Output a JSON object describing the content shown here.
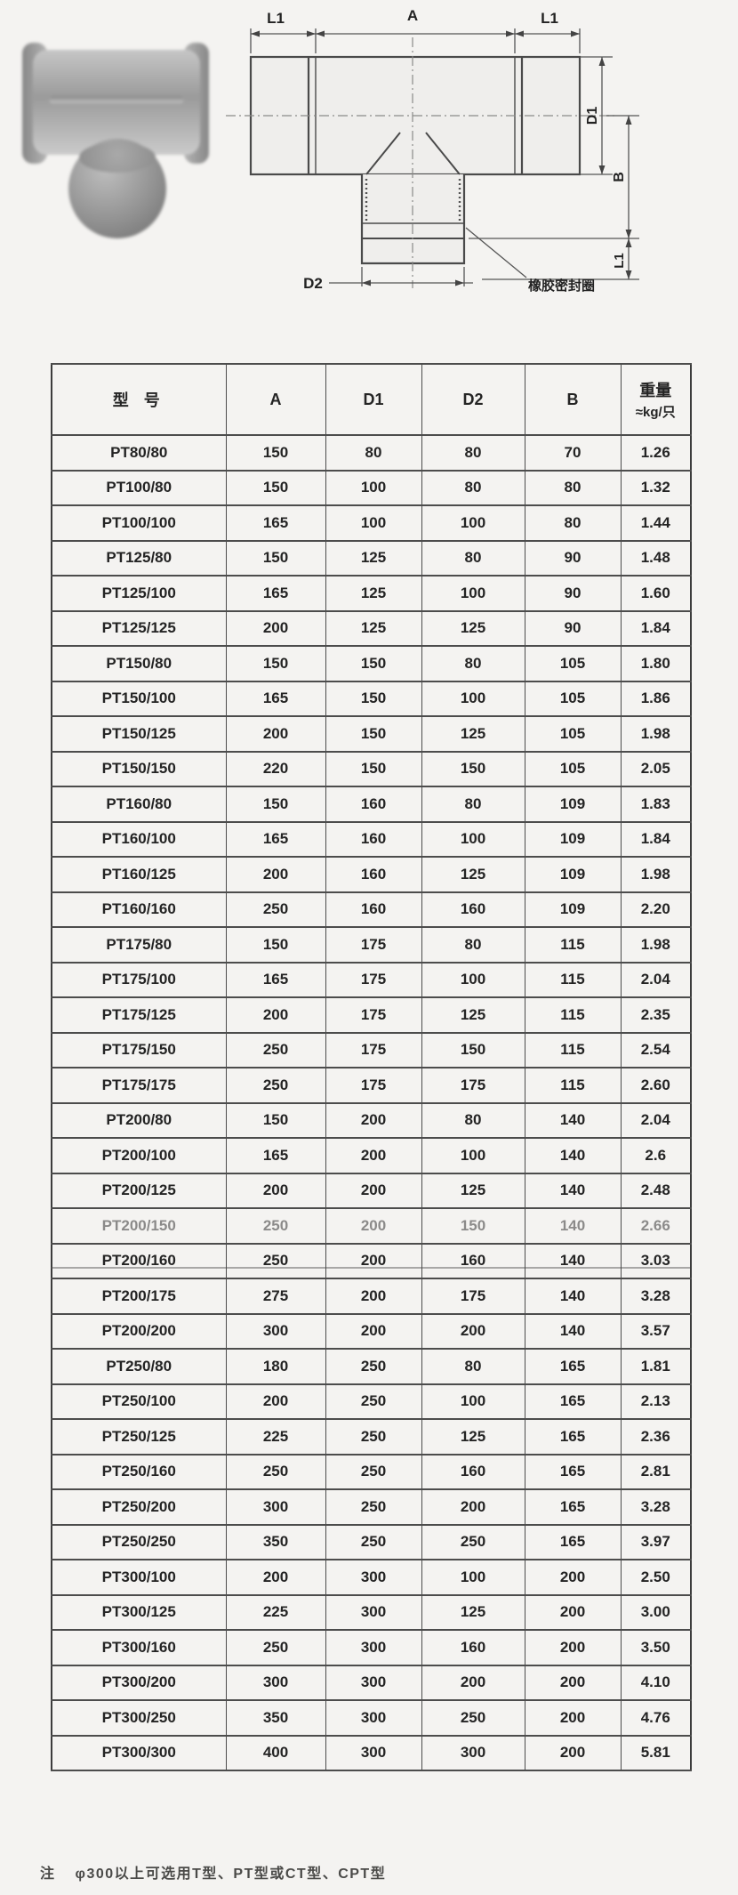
{
  "drawing": {
    "labels": {
      "l1_left": "L1",
      "a": "A",
      "l1_right": "L1",
      "d1": "D1",
      "b": "B",
      "l1_bottom": "L1",
      "d2": "D2"
    },
    "annotation": "橡胶密封圈"
  },
  "table": {
    "headers": {
      "model": "型 号",
      "a": "A",
      "d1": "D1",
      "d2": "D2",
      "b": "B",
      "weight_line1": "重量",
      "weight_line2": "≈kg/只"
    },
    "rows": [
      {
        "model": "PT80/80",
        "a": "150",
        "d1": "80",
        "d2": "80",
        "b": "70",
        "w": "1.26"
      },
      {
        "model": "PT100/80",
        "a": "150",
        "d1": "100",
        "d2": "80",
        "b": "80",
        "w": "1.32"
      },
      {
        "model": "PT100/100",
        "a": "165",
        "d1": "100",
        "d2": "100",
        "b": "80",
        "w": "1.44"
      },
      {
        "model": "PT125/80",
        "a": "150",
        "d1": "125",
        "d2": "80",
        "b": "90",
        "w": "1.48"
      },
      {
        "model": "PT125/100",
        "a": "165",
        "d1": "125",
        "d2": "100",
        "b": "90",
        "w": "1.60"
      },
      {
        "model": "PT125/125",
        "a": "200",
        "d1": "125",
        "d2": "125",
        "b": "90",
        "w": "1.84"
      },
      {
        "model": "PT150/80",
        "a": "150",
        "d1": "150",
        "d2": "80",
        "b": "105",
        "w": "1.80"
      },
      {
        "model": "PT150/100",
        "a": "165",
        "d1": "150",
        "d2": "100",
        "b": "105",
        "w": "1.86"
      },
      {
        "model": "PT150/125",
        "a": "200",
        "d1": "150",
        "d2": "125",
        "b": "105",
        "w": "1.98"
      },
      {
        "model": "PT150/150",
        "a": "220",
        "d1": "150",
        "d2": "150",
        "b": "105",
        "w": "2.05"
      },
      {
        "model": "PT160/80",
        "a": "150",
        "d1": "160",
        "d2": "80",
        "b": "109",
        "w": "1.83"
      },
      {
        "model": "PT160/100",
        "a": "165",
        "d1": "160",
        "d2": "100",
        "b": "109",
        "w": "1.84"
      },
      {
        "model": "PT160/125",
        "a": "200",
        "d1": "160",
        "d2": "125",
        "b": "109",
        "w": "1.98"
      },
      {
        "model": "PT160/160",
        "a": "250",
        "d1": "160",
        "d2": "160",
        "b": "109",
        "w": "2.20"
      },
      {
        "model": "PT175/80",
        "a": "150",
        "d1": "175",
        "d2": "80",
        "b": "115",
        "w": "1.98"
      },
      {
        "model": "PT175/100",
        "a": "165",
        "d1": "175",
        "d2": "100",
        "b": "115",
        "w": "2.04"
      },
      {
        "model": "PT175/125",
        "a": "200",
        "d1": "175",
        "d2": "125",
        "b": "115",
        "w": "2.35"
      },
      {
        "model": "PT175/150",
        "a": "250",
        "d1": "175",
        "d2": "150",
        "b": "115",
        "w": "2.54"
      },
      {
        "model": "PT175/175",
        "a": "250",
        "d1": "175",
        "d2": "175",
        "b": "115",
        "w": "2.60"
      },
      {
        "model": "PT200/80",
        "a": "150",
        "d1": "200",
        "d2": "80",
        "b": "140",
        "w": "2.04"
      },
      {
        "model": "PT200/100",
        "a": "165",
        "d1": "200",
        "d2": "100",
        "b": "140",
        "w": "2.6"
      },
      {
        "model": "PT200/125",
        "a": "200",
        "d1": "200",
        "d2": "125",
        "b": "140",
        "w": "2.48"
      },
      {
        "model": "PT200/150",
        "a": "250",
        "d1": "200",
        "d2": "150",
        "b": "140",
        "w": "2.66",
        "faded": true
      },
      {
        "model": "PT200/160",
        "a": "250",
        "d1": "200",
        "d2": "160",
        "b": "140",
        "w": "3.03"
      },
      {
        "model": "PT200/175",
        "a": "275",
        "d1": "200",
        "d2": "175",
        "b": "140",
        "w": "3.28"
      },
      {
        "model": "PT200/200",
        "a": "300",
        "d1": "200",
        "d2": "200",
        "b": "140",
        "w": "3.57"
      },
      {
        "model": "PT250/80",
        "a": "180",
        "d1": "250",
        "d2": "80",
        "b": "165",
        "w": "1.81"
      },
      {
        "model": "PT250/100",
        "a": "200",
        "d1": "250",
        "d2": "100",
        "b": "165",
        "w": "2.13"
      },
      {
        "model": "PT250/125",
        "a": "225",
        "d1": "250",
        "d2": "125",
        "b": "165",
        "w": "2.36"
      },
      {
        "model": "PT250/160",
        "a": "250",
        "d1": "250",
        "d2": "160",
        "b": "165",
        "w": "2.81"
      },
      {
        "model": "PT250/200",
        "a": "300",
        "d1": "250",
        "d2": "200",
        "b": "165",
        "w": "3.28"
      },
      {
        "model": "PT250/250",
        "a": "350",
        "d1": "250",
        "d2": "250",
        "b": "165",
        "w": "3.97"
      },
      {
        "model": "PT300/100",
        "a": "200",
        "d1": "300",
        "d2": "100",
        "b": "200",
        "w": "2.50"
      },
      {
        "model": "PT300/125",
        "a": "225",
        "d1": "300",
        "d2": "125",
        "b": "200",
        "w": "3.00"
      },
      {
        "model": "PT300/160",
        "a": "250",
        "d1": "300",
        "d2": "160",
        "b": "200",
        "w": "3.50"
      },
      {
        "model": "PT300/200",
        "a": "300",
        "d1": "300",
        "d2": "200",
        "b": "200",
        "w": "4.10"
      },
      {
        "model": "PT300/250",
        "a": "350",
        "d1": "300",
        "d2": "250",
        "b": "200",
        "w": "4.76"
      },
      {
        "model": "PT300/300",
        "a": "400",
        "d1": "300",
        "d2": "300",
        "b": "200",
        "w": "5.81"
      }
    ]
  },
  "note": {
    "prefix": "注",
    "text": "φ300以上可选用T型、PT型或CT型、CPT型"
  }
}
